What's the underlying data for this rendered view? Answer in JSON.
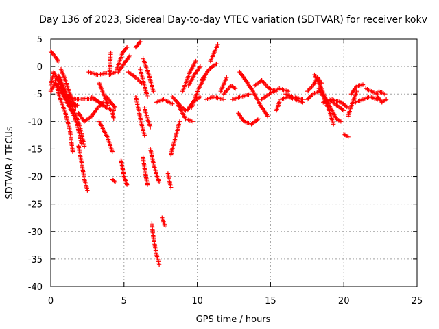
{
  "chart_data": {
    "type": "scatter",
    "title": "Day 136 of 2023, Sidereal Day-to-day VTEC variation (SDTVAR) for receiver kokv",
    "xlabel": "GPS time / hours",
    "ylabel": "SDTVAR / TECUs",
    "xlim": [
      0,
      25
    ],
    "ylim": [
      -40,
      5
    ],
    "xticks": [
      0,
      5,
      10,
      15,
      20,
      25
    ],
    "yticks": [
      5,
      0,
      -5,
      -10,
      -15,
      -20,
      -25,
      -30,
      -35,
      -40
    ],
    "grid": true,
    "marker": "+",
    "series": [
      {
        "name": "SDTVAR",
        "color": "#ff0000",
        "segments": [
          [
            [
              0.0,
              2.8
            ],
            [
              0.4,
              1.5
            ],
            [
              0.5,
              0.8
            ]
          ],
          [
            [
              0.0,
              -3.5
            ],
            [
              0.2,
              -1.0
            ],
            [
              0.6,
              -3.0
            ],
            [
              1.0,
              -6.0
            ],
            [
              1.5,
              -8.5
            ]
          ],
          [
            [
              0.0,
              -4.5
            ],
            [
              0.3,
              -3.0
            ],
            [
              0.7,
              -4.5
            ],
            [
              1.2,
              -6.5
            ],
            [
              1.8,
              -7.0
            ]
          ],
          [
            [
              0.3,
              -2.5
            ],
            [
              0.6,
              -5.5
            ],
            [
              1.0,
              -8.5
            ],
            [
              1.3,
              -11.5
            ],
            [
              1.5,
              -15.5
            ]
          ],
          [
            [
              0.5,
              -1.5
            ],
            [
              0.8,
              -4.0
            ],
            [
              1.3,
              -7.0
            ],
            [
              1.8,
              -10.5
            ],
            [
              2.1,
              -14.0
            ]
          ],
          [
            [
              0.6,
              -2.0
            ],
            [
              1.0,
              -4.5
            ],
            [
              1.5,
              -7.5
            ],
            [
              2.0,
              -11.0
            ],
            [
              2.3,
              -14.5
            ]
          ],
          [
            [
              0.7,
              -0.5
            ],
            [
              1.0,
              -2.5
            ],
            [
              1.3,
              -5.0
            ],
            [
              1.7,
              -7.5
            ]
          ],
          [
            [
              1.2,
              -5.5
            ],
            [
              1.8,
              -6.0
            ],
            [
              2.4,
              -5.8
            ],
            [
              3.0,
              -6.0
            ],
            [
              3.6,
              -7.0
            ]
          ],
          [
            [
              1.9,
              -14.5
            ],
            [
              2.1,
              -17.5
            ],
            [
              2.3,
              -20.5
            ],
            [
              2.5,
              -22.5
            ]
          ],
          [
            [
              1.9,
              -8.5
            ],
            [
              2.3,
              -10.0
            ],
            [
              2.8,
              -9.0
            ],
            [
              3.2,
              -7.5
            ],
            [
              3.6,
              -6.5
            ]
          ],
          [
            [
              2.8,
              -5.5
            ],
            [
              3.3,
              -6.5
            ],
            [
              3.8,
              -7.5
            ],
            [
              4.3,
              -8.0
            ]
          ],
          [
            [
              3.3,
              -10.0
            ],
            [
              3.6,
              -11.5
            ],
            [
              3.9,
              -13.0
            ],
            [
              4.2,
              -15.5
            ]
          ],
          [
            [
              3.3,
              -3.0
            ],
            [
              3.6,
              -5.0
            ],
            [
              3.9,
              -7.0
            ]
          ],
          [
            [
              3.8,
              -5.5
            ],
            [
              4.1,
              -6.5
            ],
            [
              4.4,
              -7.5
            ]
          ],
          [
            [
              4.2,
              -8.0
            ],
            [
              4.3,
              -9.5
            ]
          ],
          [
            [
              4.2,
              -20.5
            ],
            [
              4.4,
              -21.0
            ]
          ],
          [
            [
              4.1,
              2.5
            ],
            [
              4.0,
              -1.5
            ],
            [
              4.4,
              -1.0
            ]
          ],
          [
            [
              4.5,
              -0.5
            ],
            [
              4.9,
              2.5
            ],
            [
              5.2,
              3.5
            ]
          ],
          [
            [
              2.6,
              -1.0
            ],
            [
              3.2,
              -1.5
            ],
            [
              3.8,
              -1.2
            ]
          ],
          [
            [
              4.6,
              -1.0
            ],
            [
              5.0,
              0.5
            ],
            [
              5.4,
              2.0
            ]
          ],
          [
            [
              4.8,
              -17.0
            ],
            [
              4.9,
              -18.5
            ],
            [
              5.0,
              -20.0
            ],
            [
              5.2,
              -21.5
            ]
          ],
          [
            [
              5.8,
              3.5
            ],
            [
              6.1,
              4.5
            ]
          ],
          [
            [
              5.3,
              -1.0
            ],
            [
              5.8,
              -2.0
            ],
            [
              6.2,
              -3.0
            ]
          ],
          [
            [
              6.1,
              -0.5
            ],
            [
              6.4,
              -3.5
            ],
            [
              6.6,
              -5.5
            ]
          ],
          [
            [
              5.8,
              -5.5
            ],
            [
              6.0,
              -8.0
            ],
            [
              6.2,
              -10.5
            ],
            [
              6.4,
              -12.5
            ]
          ],
          [
            [
              6.3,
              1.5
            ],
            [
              6.7,
              -1.5
            ],
            [
              7.0,
              -4.5
            ]
          ],
          [
            [
              6.4,
              -7.5
            ],
            [
              6.6,
              -9.5
            ],
            [
              6.8,
              -11.0
            ]
          ],
          [
            [
              6.3,
              -16.5
            ],
            [
              6.4,
              -18.5
            ],
            [
              6.6,
              -21.5
            ]
          ],
          [
            [
              6.8,
              -15.0
            ],
            [
              7.0,
              -17.5
            ],
            [
              7.2,
              -19.5
            ],
            [
              7.4,
              -21.0
            ]
          ],
          [
            [
              6.9,
              -28.5
            ],
            [
              7.0,
              -31.0
            ],
            [
              7.2,
              -34.0
            ],
            [
              7.4,
              -36.0
            ]
          ],
          [
            [
              7.6,
              -27.5
            ],
            [
              7.8,
              -29.0
            ]
          ],
          [
            [
              7.2,
              -6.5
            ],
            [
              7.7,
              -6.0
            ],
            [
              8.3,
              -6.8
            ]
          ],
          [
            [
              8.0,
              -19.5
            ],
            [
              8.2,
              -22.0
            ]
          ],
          [
            [
              8.2,
              -16.0
            ],
            [
              8.5,
              -13.0
            ],
            [
              8.8,
              -10.0
            ]
          ],
          [
            [
              8.3,
              -5.5
            ],
            [
              8.8,
              -7.0
            ],
            [
              9.2,
              -8.0
            ]
          ],
          [
            [
              8.7,
              -7.0
            ],
            [
              9.2,
              -9.5
            ],
            [
              9.7,
              -10.0
            ]
          ],
          [
            [
              9.3,
              -8.0
            ],
            [
              9.7,
              -6.5
            ],
            [
              10.2,
              -5.5
            ]
          ],
          [
            [
              9.0,
              -4.5
            ],
            [
              9.5,
              -1.0
            ],
            [
              9.9,
              1.0
            ]
          ],
          [
            [
              9.4,
              -3.5
            ],
            [
              9.8,
              -1.5
            ],
            [
              10.2,
              0.0
            ]
          ],
          [
            [
              9.6,
              -7.5
            ],
            [
              10.1,
              -4.0
            ],
            [
              10.5,
              -2.0
            ]
          ],
          [
            [
              10.3,
              -2.5
            ],
            [
              10.8,
              -0.5
            ],
            [
              11.3,
              0.5
            ]
          ],
          [
            [
              10.6,
              -6.0
            ],
            [
              11.1,
              -5.5
            ],
            [
              11.8,
              -6.0
            ]
          ],
          [
            [
              10.9,
              1.0
            ],
            [
              11.4,
              4.0
            ]
          ],
          [
            [
              11.6,
              -4.5
            ],
            [
              12.0,
              -2.0
            ]
          ],
          [
            [
              11.8,
              -5.0
            ],
            [
              12.3,
              -3.5
            ],
            [
              12.6,
              -4.0
            ]
          ],
          [
            [
              12.4,
              -6.0
            ],
            [
              13.0,
              -5.5
            ],
            [
              13.6,
              -5.0
            ]
          ],
          [
            [
              12.8,
              -8.5
            ],
            [
              13.2,
              -10.0
            ],
            [
              13.7,
              -10.5
            ],
            [
              14.2,
              -9.5
            ]
          ],
          [
            [
              12.9,
              -1.0
            ],
            [
              13.3,
              -2.5
            ],
            [
              13.8,
              -4.5
            ],
            [
              14.3,
              -7.0
            ],
            [
              14.8,
              -9.0
            ]
          ],
          [
            [
              13.9,
              -3.5
            ],
            [
              14.4,
              -2.5
            ],
            [
              14.9,
              -4.0
            ],
            [
              15.4,
              -4.5
            ]
          ],
          [
            [
              14.4,
              -6.0
            ],
            [
              15.0,
              -4.8
            ],
            [
              15.6,
              -4.0
            ],
            [
              16.2,
              -4.5
            ]
          ],
          [
            [
              15.4,
              -8.0
            ],
            [
              15.6,
              -6.5
            ]
          ],
          [
            [
              15.7,
              -6.0
            ],
            [
              16.2,
              -5.5
            ],
            [
              16.7,
              -6.0
            ],
            [
              17.2,
              -6.5
            ]
          ],
          [
            [
              16.0,
              -5.0
            ],
            [
              16.5,
              -5.5
            ],
            [
              17.2,
              -6.0
            ]
          ],
          [
            [
              17.5,
              -6.0
            ],
            [
              17.9,
              -5.0
            ],
            [
              18.3,
              -4.5
            ]
          ],
          [
            [
              17.5,
              -4.5
            ],
            [
              17.9,
              -3.5
            ],
            [
              18.2,
              -2.0
            ],
            [
              18.5,
              -3.0
            ]
          ],
          [
            [
              18.0,
              -1.5
            ],
            [
              18.4,
              -3.5
            ],
            [
              18.7,
              -5.5
            ],
            [
              19.1,
              -7.5
            ],
            [
              19.5,
              -9.5
            ],
            [
              19.8,
              -10.0
            ]
          ],
          [
            [
              18.3,
              -4.0
            ],
            [
              18.7,
              -6.0
            ],
            [
              19.0,
              -8.0
            ],
            [
              19.3,
              -10.5
            ]
          ],
          [
            [
              18.6,
              -6.5
            ],
            [
              19.2,
              -6.0
            ],
            [
              19.8,
              -6.5
            ],
            [
              20.3,
              -7.5
            ]
          ],
          [
            [
              19.0,
              -6.0
            ],
            [
              19.5,
              -7.0
            ],
            [
              20.0,
              -8.0
            ]
          ],
          [
            [
              20.0,
              -12.3
            ],
            [
              20.3,
              -12.8
            ]
          ],
          [
            [
              20.3,
              -9.0
            ],
            [
              20.6,
              -6.5
            ],
            [
              20.9,
              -4.5
            ]
          ],
          [
            [
              20.5,
              -5.0
            ],
            [
              20.9,
              -3.5
            ],
            [
              21.3,
              -3.3
            ]
          ],
          [
            [
              20.8,
              -6.5
            ],
            [
              21.3,
              -6.0
            ],
            [
              21.8,
              -5.5
            ],
            [
              22.3,
              -6.0
            ]
          ],
          [
            [
              21.5,
              -4.0
            ],
            [
              21.9,
              -4.5
            ],
            [
              22.3,
              -5.0
            ]
          ],
          [
            [
              22.3,
              -5.5
            ],
            [
              22.6,
              -6.5
            ],
            [
              22.9,
              -6.0
            ]
          ],
          [
            [
              22.4,
              -4.5
            ],
            [
              22.8,
              -5.0
            ]
          ]
        ]
      }
    ]
  }
}
